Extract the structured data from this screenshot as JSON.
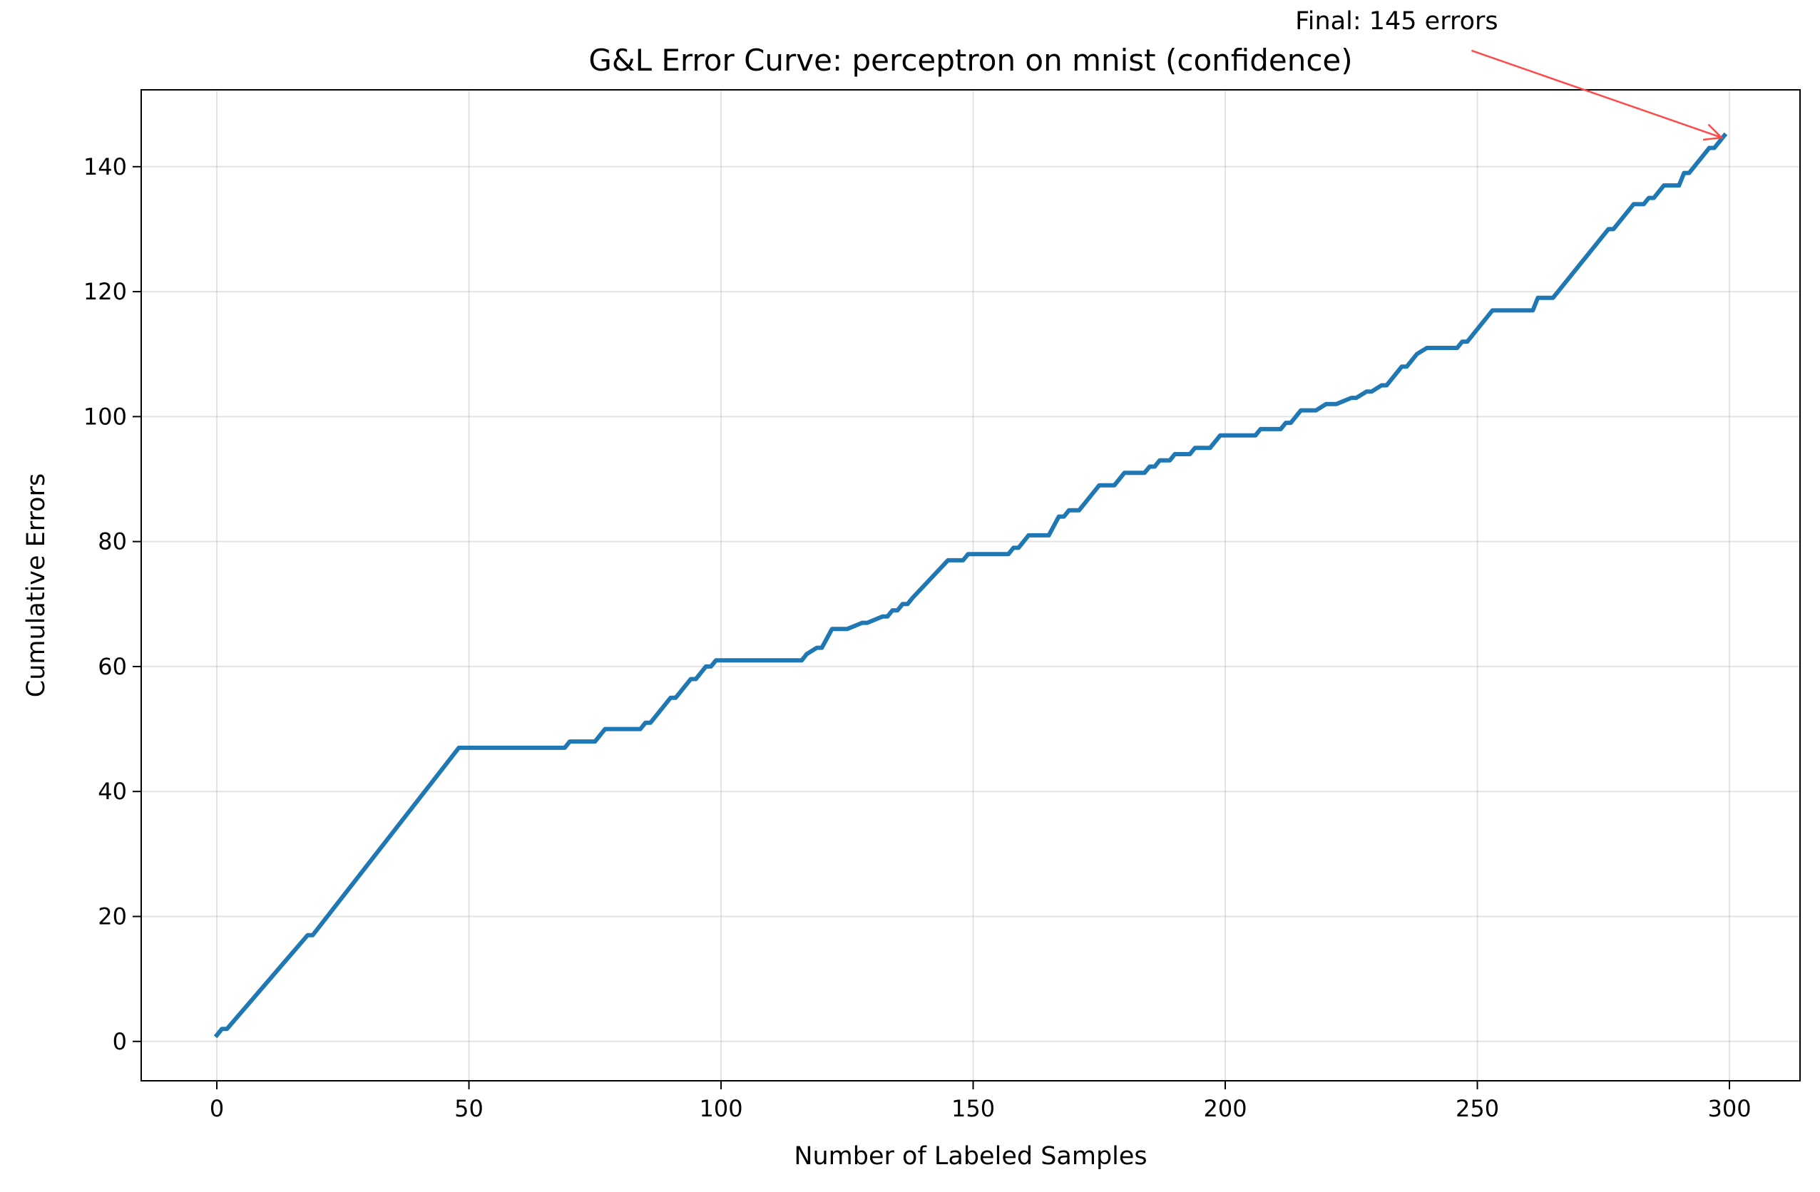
{
  "chart_data": {
    "type": "line",
    "title": "G&L Error Curve: perceptron on mnist (confidence)",
    "xlabel": "Number of Labeled Samples",
    "ylabel": "Cumulative Errors",
    "xlim": [
      -15,
      314
    ],
    "ylim": [
      -6.3,
      152.3
    ],
    "xticks": [
      0,
      50,
      100,
      150,
      200,
      250,
      300
    ],
    "yticks": [
      0,
      20,
      40,
      60,
      80,
      100,
      120,
      140
    ],
    "grid": true,
    "line_color": "#1f77b4",
    "annotation_color": "#ff4a4a",
    "series": [
      {
        "x": [
          0,
          1,
          2,
          18,
          19,
          48,
          49,
          69,
          70,
          75,
          77,
          84,
          85,
          86,
          90,
          91,
          94,
          95,
          97,
          98,
          99,
          100,
          116,
          117,
          119,
          120,
          122,
          125,
          128,
          129,
          132,
          133,
          134,
          135,
          136,
          137,
          138,
          145,
          148,
          149,
          157,
          158,
          159,
          161,
          165,
          167,
          168,
          169,
          171,
          172,
          175,
          176,
          178,
          179,
          180,
          184,
          185,
          186,
          187,
          188,
          189,
          190,
          192,
          193,
          194,
          196,
          197,
          199,
          201,
          205,
          206,
          207,
          211,
          212,
          213,
          214,
          215,
          217,
          218,
          220,
          221,
          222,
          225,
          226,
          228,
          229,
          231,
          232,
          235,
          236,
          237,
          238,
          240,
          241,
          246,
          247,
          248,
          253,
          261,
          262,
          265,
          276,
          277,
          281,
          283,
          284,
          285,
          286,
          287,
          288,
          290,
          291,
          292,
          295,
          296,
          297,
          299
        ],
        "y": [
          1,
          2,
          2,
          17,
          17,
          47,
          47,
          47,
          48,
          48,
          50,
          50,
          51,
          51,
          55,
          55,
          58,
          58,
          60,
          60,
          61,
          61,
          61,
          62,
          63,
          63,
          66,
          66,
          67,
          67,
          68,
          68,
          69,
          69,
          70,
          70,
          71,
          77,
          77,
          78,
          78,
          79,
          79,
          81,
          81,
          84,
          84,
          85,
          85,
          86,
          89,
          89,
          89,
          90,
          91,
          91,
          92,
          92,
          93,
          93,
          93,
          94,
          94,
          94,
          95,
          95,
          95,
          97,
          97,
          97,
          97,
          98,
          98,
          99,
          99,
          100,
          101,
          101,
          101,
          102,
          102,
          102,
          103,
          103,
          104,
          104,
          105,
          105,
          108,
          108,
          109,
          110,
          111,
          111,
          111,
          112,
          112,
          117,
          117,
          119,
          119,
          130,
          130,
          134,
          134,
          135,
          135,
          136,
          137,
          137,
          137,
          139,
          139,
          142,
          143,
          143,
          145
        ]
      }
    ],
    "annotation": {
      "text": "Final: 145 errors",
      "point": [
        299,
        145
      ],
      "text_anchor_data": [
        234,
        162
      ]
    }
  }
}
